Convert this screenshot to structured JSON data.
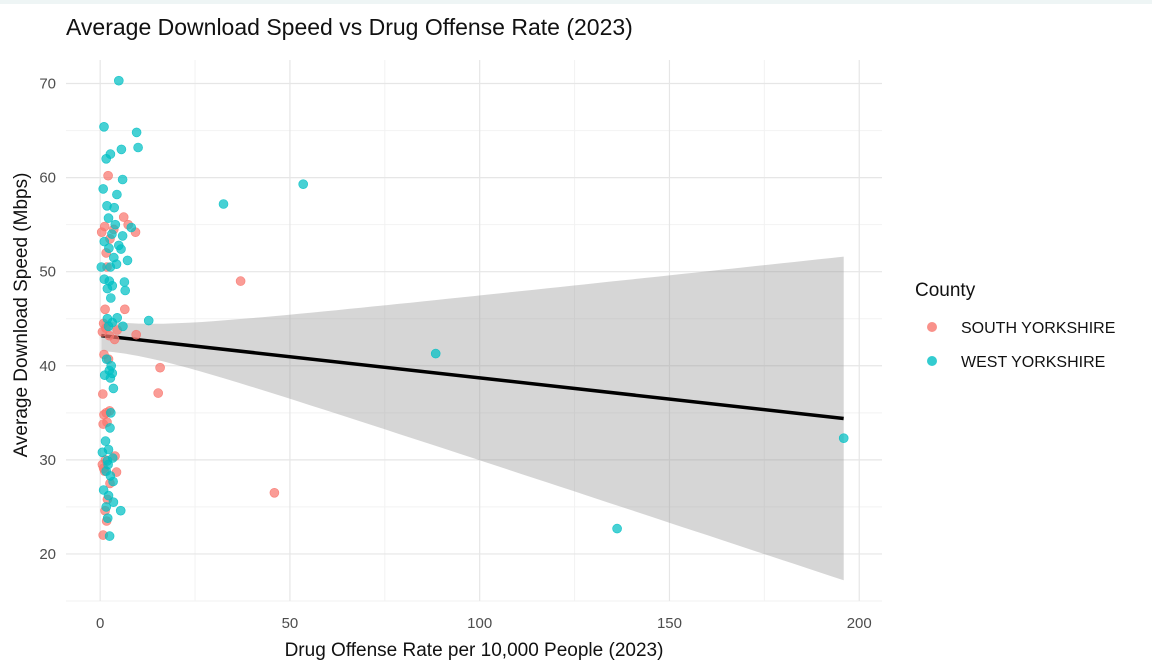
{
  "chart_data": {
    "type": "scatter",
    "title": "Average Download Speed vs Drug Offense Rate (2023)",
    "xlabel": "Drug Offense Rate per 10,000 People (2023)",
    "ylabel": "Average Download Speed (Mbps)",
    "xlim": [
      -9,
      206
    ],
    "ylim": [
      15,
      72.5
    ],
    "x_ticks": [
      0,
      50,
      100,
      150,
      200
    ],
    "y_ticks": [
      20,
      30,
      40,
      50,
      60,
      70
    ],
    "grid": true,
    "legend": {
      "title": "County",
      "position": "right",
      "entries": [
        {
          "label": "SOUTH YORKSHIRE",
          "color": "#F8766D"
        },
        {
          "label": "WEST YORKSHIRE",
          "color": "#00BFC4"
        }
      ]
    },
    "series": [
      {
        "name": "SOUTH YORKSHIRE",
        "color": "#F8766D",
        "points": [
          [
            2.1,
            60.2
          ],
          [
            6.2,
            55.8
          ],
          [
            7.4,
            55.0
          ],
          [
            9.3,
            54.2
          ],
          [
            0.4,
            54.2
          ],
          [
            1.2,
            54.8
          ],
          [
            3.6,
            54.5
          ],
          [
            2.6,
            53.5
          ],
          [
            1.6,
            52.0
          ],
          [
            1.8,
            50.5
          ],
          [
            6.5,
            46.0
          ],
          [
            37.0,
            49.0
          ],
          [
            1.3,
            46.0
          ],
          [
            0.9,
            44.5
          ],
          [
            1.5,
            44.0
          ],
          [
            0.6,
            43.6
          ],
          [
            2.4,
            43.2
          ],
          [
            4.5,
            43.8
          ],
          [
            3.8,
            42.8
          ],
          [
            9.5,
            43.3
          ],
          [
            1.0,
            41.2
          ],
          [
            2.2,
            40.7
          ],
          [
            15.8,
            39.8
          ],
          [
            15.3,
            37.1
          ],
          [
            0.7,
            37.0
          ],
          [
            1.6,
            35.0
          ],
          [
            2.5,
            35.2
          ],
          [
            1.0,
            34.8
          ],
          [
            1.8,
            34.0
          ],
          [
            0.8,
            33.8
          ],
          [
            3.9,
            30.4
          ],
          [
            1.4,
            30.0
          ],
          [
            0.6,
            29.5
          ],
          [
            0.9,
            29.1
          ],
          [
            1.2,
            28.8
          ],
          [
            4.3,
            28.7
          ],
          [
            2.6,
            27.5
          ],
          [
            45.9,
            26.5
          ],
          [
            1.9,
            25.8
          ],
          [
            1.3,
            24.6
          ],
          [
            1.7,
            23.5
          ],
          [
            0.8,
            22.0
          ]
        ]
      },
      {
        "name": "WEST YORKSHIRE",
        "color": "#00BFC4",
        "points": [
          [
            4.9,
            70.3
          ],
          [
            1.0,
            65.4
          ],
          [
            9.6,
            64.8
          ],
          [
            10.0,
            63.2
          ],
          [
            5.6,
            63.0
          ],
          [
            2.7,
            62.5
          ],
          [
            1.6,
            62.0
          ],
          [
            5.9,
            59.8
          ],
          [
            53.5,
            59.3
          ],
          [
            0.8,
            58.8
          ],
          [
            4.4,
            58.2
          ],
          [
            32.5,
            57.2
          ],
          [
            1.8,
            57.0
          ],
          [
            3.7,
            56.8
          ],
          [
            2.2,
            55.7
          ],
          [
            4.0,
            55.0
          ],
          [
            8.2,
            54.7
          ],
          [
            3.1,
            54.0
          ],
          [
            5.9,
            53.8
          ],
          [
            1.1,
            53.2
          ],
          [
            4.9,
            52.8
          ],
          [
            2.3,
            52.5
          ],
          [
            5.5,
            52.4
          ],
          [
            3.6,
            51.5
          ],
          [
            7.2,
            51.2
          ],
          [
            4.3,
            50.8
          ],
          [
            0.3,
            50.5
          ],
          [
            2.7,
            50.5
          ],
          [
            1.1,
            49.2
          ],
          [
            2.4,
            49.0
          ],
          [
            6.4,
            48.9
          ],
          [
            3.2,
            48.5
          ],
          [
            1.9,
            48.2
          ],
          [
            6.6,
            48.0
          ],
          [
            2.8,
            47.2
          ],
          [
            4.5,
            45.1
          ],
          [
            1.9,
            45.0
          ],
          [
            12.8,
            44.8
          ],
          [
            3.2,
            44.6
          ],
          [
            6.0,
            44.2
          ],
          [
            2.2,
            44.2
          ],
          [
            88.4,
            41.3
          ],
          [
            1.7,
            40.7
          ],
          [
            2.9,
            40.0
          ],
          [
            2.4,
            39.5
          ],
          [
            1.2,
            39.0
          ],
          [
            3.2,
            39.2
          ],
          [
            2.7,
            38.7
          ],
          [
            3.5,
            37.6
          ],
          [
            2.8,
            35.0
          ],
          [
            2.6,
            33.4
          ],
          [
            1.4,
            32.0
          ],
          [
            2.2,
            31.1
          ],
          [
            0.6,
            30.8
          ],
          [
            1.9,
            29.9
          ],
          [
            3.3,
            30.2
          ],
          [
            2.1,
            29.5
          ],
          [
            1.6,
            28.8
          ],
          [
            2.7,
            28.3
          ],
          [
            0.9,
            26.8
          ],
          [
            2.2,
            26.2
          ],
          [
            3.5,
            25.5
          ],
          [
            1.6,
            25.0
          ],
          [
            5.4,
            24.6
          ],
          [
            3.4,
            27.7
          ],
          [
            2.0,
            23.8
          ],
          [
            2.5,
            21.9
          ],
          [
            136.2,
            22.7
          ],
          [
            195.9,
            32.3
          ]
        ]
      }
    ],
    "trend": {
      "label": "linear fit",
      "x": [
        0.3,
        195.9
      ],
      "y": [
        43.2,
        34.4
      ],
      "ci_lower": [
        41.6,
        17.2
      ],
      "ci_upper": [
        44.8,
        51.6
      ]
    }
  }
}
